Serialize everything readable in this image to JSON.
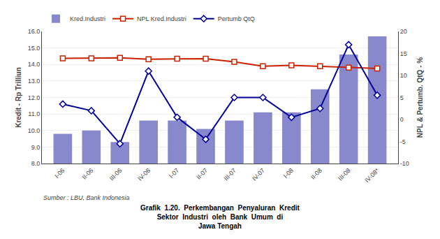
{
  "chart_data": {
    "type": "bar",
    "categories": [
      "I-06",
      "II-06",
      "III-06",
      "IV-06",
      "I-07",
      "II-07",
      "III-07",
      "IV-07",
      "I-08",
      "II-08",
      "III-08",
      "IV-08*"
    ],
    "series": [
      {
        "name": "Kred.Industri",
        "type": "bar",
        "color": "#8888cc",
        "values": [
          9.8,
          10.0,
          9.3,
          10.6,
          10.6,
          10.1,
          10.6,
          11.1,
          11.1,
          12.5,
          14.6,
          15.7
        ]
      },
      {
        "name": "NPL Kred.Industri",
        "type": "line",
        "axis": "y2",
        "color": "#cc2200",
        "marker": "square",
        "values": [
          13.9,
          13.9,
          14.0,
          13.7,
          13.8,
          13.8,
          13.1,
          12.1,
          12.3,
          12.1,
          11.8,
          11.6
        ]
      },
      {
        "name": "Pertumb QtQ",
        "type": "line",
        "axis": "y2",
        "color": "#000099",
        "marker": "diamond",
        "values": [
          3.5,
          2.0,
          -5.5,
          11.0,
          0.5,
          -4.5,
          5.0,
          5.0,
          0.5,
          2.5,
          17.0,
          5.5
        ]
      }
    ],
    "ylabel": "Kredit - Rp Trilliun",
    "y2label": "NPL & Pertumb. QtQ - %",
    "ylim": [
      8.0,
      16.0
    ],
    "yticks": [
      {
        "value": 8.0,
        "label": "8.0"
      },
      {
        "value": 9.0,
        "label": "9.0"
      },
      {
        "value": 10.0,
        "label": "10.0"
      },
      {
        "value": 11.0,
        "label": "11.0"
      },
      {
        "value": 12.0,
        "label": "12.0"
      },
      {
        "value": 13.0,
        "label": "13.0"
      },
      {
        "value": 14.0,
        "label": "14.0"
      },
      {
        "value": 15.0,
        "label": "15.0"
      },
      {
        "value": 16.0,
        "label": "16.0"
      }
    ],
    "y2lim": [
      -10,
      20
    ],
    "y2ticks": [
      -10,
      -5,
      0,
      5,
      10,
      15,
      20
    ],
    "grid": true,
    "legend": "upper left",
    "annotations": [
      "Sumber : LBU, Bank Indonesia",
      "Grafik  1.20.  Perkembangan  Penyaluran  Kredit",
      "Sektor  Industri  oleh  Bank  Umum  di",
      "Jawa Tengah"
    ]
  }
}
